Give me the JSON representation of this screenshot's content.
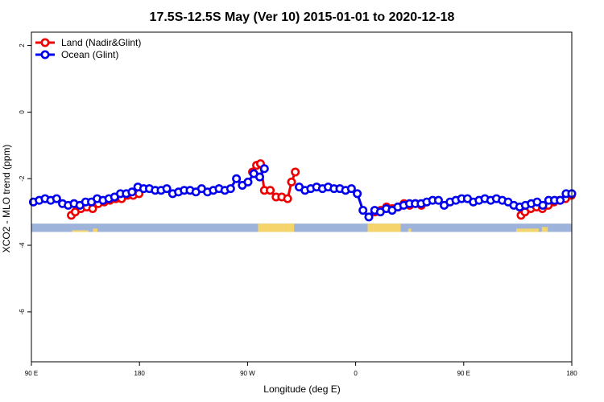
{
  "chart_data": {
    "type": "line",
    "title": "17.5S-12.5S May (Ver 10)   2015-01-01 to 2020-12-18",
    "xlabel": "Longitude (deg E)",
    "ylabel": "XCO2 - MLO trend (ppm)",
    "xlim": [
      90,
      450
    ],
    "ylim": [
      -7.5,
      2.4
    ],
    "x_ticks": [
      {
        "value": 90,
        "label": "90 E"
      },
      {
        "value": 162,
        "label": "180"
      },
      {
        "value": 234,
        "label": "90 W"
      },
      {
        "value": 306,
        "label": "0"
      },
      {
        "value": 378,
        "label": "90 E"
      },
      {
        "value": 450,
        "label": "180"
      }
    ],
    "y_ticks": [
      {
        "value": 2,
        "label": "2"
      },
      {
        "value": 0,
        "label": "0"
      },
      {
        "value": -2,
        "label": "-2"
      },
      {
        "value": -4,
        "label": "-4"
      },
      {
        "value": -6,
        "label": "-6"
      }
    ],
    "legend": {
      "position": "top-left"
    },
    "series": [
      {
        "name": "Land (Nadir&Glint)",
        "color": "#ee0000",
        "segments": [
          [
            [
              116.6,
              -3.1
            ],
            [
              119.2,
              -3.0
            ],
            [
              123.0,
              -2.9
            ],
            [
              126.9,
              -2.85
            ],
            [
              130.8,
              -2.9
            ],
            [
              134.6,
              -2.75
            ],
            [
              138.5,
              -2.7
            ],
            [
              142.3,
              -2.65
            ],
            [
              146.2,
              -2.6
            ],
            [
              150.1,
              -2.6
            ],
            [
              153.9,
              -2.5
            ],
            [
              157.8,
              -2.5
            ],
            [
              161.7,
              -2.45
            ]
          ],
          [
            [
              237.3,
              -1.8
            ],
            [
              240.0,
              -1.6
            ],
            [
              242.6,
              -1.55
            ],
            [
              245.2,
              -2.35
            ],
            [
              249.1,
              -2.35
            ],
            [
              253.0,
              -2.55
            ],
            [
              256.8,
              -2.55
            ],
            [
              260.7,
              -2.6
            ],
            [
              263.3,
              -2.1
            ],
            [
              265.8,
              -1.8
            ]
          ],
          [
            [
              318.8,
              -3.0
            ],
            [
              322.7,
              -2.95
            ],
            [
              326.6,
              -2.85
            ],
            [
              330.5,
              -2.9
            ],
            [
              334.3,
              -2.85
            ],
            [
              338.2,
              -2.75
            ],
            [
              342.0,
              -2.8
            ],
            [
              345.9,
              -2.75
            ],
            [
              349.8,
              -2.8
            ]
          ],
          [
            [
              416.2,
              -3.1
            ],
            [
              418.8,
              -3.0
            ],
            [
              422.7,
              -2.9
            ],
            [
              426.5,
              -2.85
            ],
            [
              430.4,
              -2.9
            ],
            [
              434.3,
              -2.8
            ],
            [
              438.1,
              -2.7
            ],
            [
              442.0,
              -2.65
            ],
            [
              445.8,
              -2.6
            ],
            [
              449.7,
              -2.5
            ]
          ]
        ]
      },
      {
        "name": "Ocean (Glint)",
        "color": "#0000ee",
        "segments": [
          [
            [
              91.3,
              -2.7
            ],
            [
              95.2,
              -2.65
            ],
            [
              99.1,
              -2.6
            ],
            [
              102.9,
              -2.65
            ],
            [
              106.8,
              -2.6
            ],
            [
              110.7,
              -2.75
            ],
            [
              114.5,
              -2.8
            ],
            [
              118.4,
              -2.75
            ],
            [
              122.3,
              -2.8
            ],
            [
              126.1,
              -2.7
            ],
            [
              130.0,
              -2.7
            ],
            [
              133.8,
              -2.6
            ],
            [
              137.7,
              -2.65
            ],
            [
              141.6,
              -2.6
            ],
            [
              145.4,
              -2.55
            ],
            [
              149.3,
              -2.45
            ],
            [
              153.2,
              -2.45
            ],
            [
              157.0,
              -2.4
            ],
            [
              160.9,
              -2.25
            ],
            [
              164.8,
              -2.3
            ],
            [
              168.6,
              -2.3
            ],
            [
              172.5,
              -2.35
            ],
            [
              176.4,
              -2.35
            ],
            [
              180.2,
              -2.3
            ],
            [
              184.1,
              -2.45
            ],
            [
              188.0,
              -2.4
            ],
            [
              191.8,
              -2.35
            ],
            [
              195.7,
              -2.35
            ],
            [
              199.6,
              -2.4
            ],
            [
              203.4,
              -2.3
            ],
            [
              207.3,
              -2.4
            ],
            [
              211.2,
              -2.35
            ],
            [
              215.0,
              -2.3
            ],
            [
              218.9,
              -2.35
            ],
            [
              222.7,
              -2.3
            ],
            [
              226.6,
              -2.0
            ],
            [
              230.5,
              -2.2
            ],
            [
              234.3,
              -2.1
            ],
            [
              238.2,
              -1.85
            ],
            [
              242.1,
              -1.95
            ],
            [
              245.2,
              -1.7
            ]
          ],
          [
            [
              268.4,
              -2.25
            ],
            [
              272.3,
              -2.35
            ],
            [
              276.1,
              -2.3
            ],
            [
              280.0,
              -2.25
            ],
            [
              283.9,
              -2.3
            ],
            [
              287.7,
              -2.25
            ],
            [
              291.6,
              -2.3
            ],
            [
              295.5,
              -2.3
            ],
            [
              299.3,
              -2.35
            ],
            [
              303.2,
              -2.3
            ],
            [
              307.1,
              -2.45
            ],
            [
              310.9,
              -2.95
            ],
            [
              314.8,
              -3.15
            ],
            [
              318.7,
              -2.95
            ],
            [
              322.5,
              -3.0
            ],
            [
              326.4,
              -2.9
            ],
            [
              330.3,
              -2.95
            ],
            [
              334.1,
              -2.85
            ],
            [
              338.0,
              -2.8
            ],
            [
              341.9,
              -2.75
            ],
            [
              345.7,
              -2.75
            ],
            [
              349.6,
              -2.75
            ],
            [
              353.4,
              -2.7
            ],
            [
              357.3,
              -2.65
            ],
            [
              361.2,
              -2.65
            ],
            [
              365.0,
              -2.8
            ],
            [
              368.9,
              -2.7
            ],
            [
              372.8,
              -2.65
            ],
            [
              376.6,
              -2.6
            ],
            [
              380.5,
              -2.6
            ],
            [
              384.4,
              -2.7
            ],
            [
              388.2,
              -2.65
            ],
            [
              392.1,
              -2.6
            ],
            [
              396.0,
              -2.65
            ],
            [
              399.8,
              -2.6
            ],
            [
              403.7,
              -2.65
            ],
            [
              407.6,
              -2.7
            ],
            [
              411.4,
              -2.8
            ],
            [
              415.3,
              -2.85
            ],
            [
              419.1,
              -2.8
            ],
            [
              423.0,
              -2.75
            ],
            [
              426.9,
              -2.7
            ],
            [
              430.7,
              -2.8
            ],
            [
              434.6,
              -2.65
            ],
            [
              438.5,
              -2.65
            ],
            [
              442.3,
              -2.65
            ],
            [
              446.2,
              -2.45
            ],
            [
              450.0,
              -2.45
            ]
          ]
        ]
      }
    ],
    "surface_band": {
      "y_top": -3.35,
      "y_bottom": -3.6,
      "ocean_color": "#9db3d9",
      "land_color": "#f5d56b",
      "land_ranges": [
        [
          117,
          128,
          -3.55
        ],
        [
          131,
          134,
          -3.5
        ],
        [
          241,
          265,
          -3.35
        ],
        [
          314,
          336,
          -3.35
        ],
        [
          341,
          343,
          -3.5
        ],
        [
          413,
          428,
          -3.5
        ],
        [
          430,
          434,
          -3.45
        ]
      ]
    }
  }
}
